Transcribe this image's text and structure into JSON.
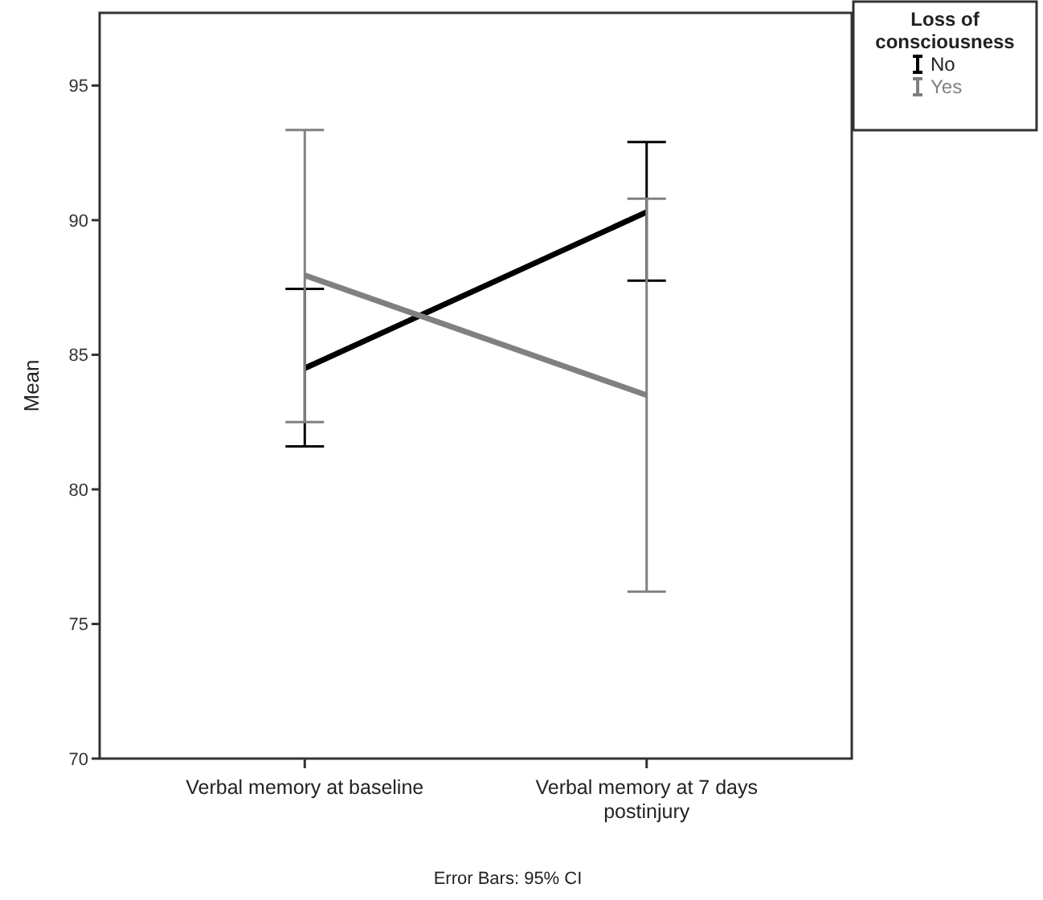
{
  "chart_data": {
    "type": "line",
    "ylabel": "Mean",
    "legend_title": "Loss of consciousness",
    "legend": "top right",
    "categories": [
      "Verbal memory at baseline",
      "Verbal memory at 7 days postinjury"
    ],
    "ylim": [
      70,
      97.7
    ],
    "yticks": [
      70,
      75,
      80,
      85,
      90,
      95
    ],
    "series": [
      {
        "name": "No",
        "color": "#000000",
        "values": [
          84.5,
          90.3
        ],
        "errors": [
          [
            81.6,
            87.45
          ],
          [
            87.75,
            92.9
          ]
        ]
      },
      {
        "name": "Yes",
        "color": "#808080",
        "values": [
          87.95,
          83.5
        ],
        "errors": [
          [
            82.5,
            93.35
          ],
          [
            76.2,
            90.8
          ]
        ]
      }
    ],
    "annotations": [
      "Error Bars: 95% CI"
    ]
  }
}
